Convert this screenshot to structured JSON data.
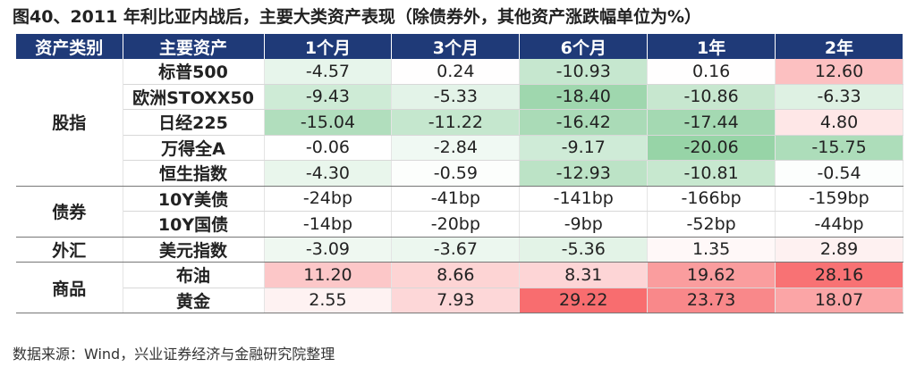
{
  "title": "图40、2011 年利比亚内战后，主要大类资产表现（除债券外，其他资产涨跌幅单位为%）",
  "table": {
    "columns": [
      "资产类别",
      "主要资产",
      "1个月",
      "3个月",
      "6个月",
      "1年",
      "2年"
    ],
    "groups": [
      {
        "label": "股指",
        "rows": [
          {
            "asset": "标普500",
            "values": [
              "-4.57",
              "0.24",
              "-10.93",
              "0.16",
              "12.60"
            ]
          },
          {
            "asset": "欧洲STOXX50",
            "values": [
              "-9.43",
              "-5.33",
              "-18.40",
              "-10.86",
              "-6.33"
            ]
          },
          {
            "asset": "日经225",
            "values": [
              "-15.04",
              "-11.22",
              "-16.42",
              "-17.44",
              "4.80"
            ]
          },
          {
            "asset": "万得全A",
            "values": [
              "-0.06",
              "-2.84",
              "-9.17",
              "-20.06",
              "-15.75"
            ]
          },
          {
            "asset": "恒生指数",
            "values": [
              "-4.30",
              "-0.59",
              "-12.93",
              "-10.81",
              "-0.54"
            ]
          }
        ]
      },
      {
        "label": "债券",
        "rows": [
          {
            "asset": "10Y美债",
            "values": [
              "-24bp",
              "-41bp",
              "-141bp",
              "-166bp",
              "-159bp"
            ]
          },
          {
            "asset": "10Y国债",
            "values": [
              "-14bp",
              "-20bp",
              "-9bp",
              "-52bp",
              "-44bp"
            ]
          }
        ]
      },
      {
        "label": "外汇",
        "rows": [
          {
            "asset": "美元指数",
            "values": [
              "-3.09",
              "-3.67",
              "-5.36",
              "1.35",
              "2.89"
            ]
          }
        ]
      },
      {
        "label": "商品",
        "rows": [
          {
            "asset": "布油",
            "values": [
              "11.20",
              "8.66",
              "8.31",
              "19.62",
              "28.16"
            ]
          },
          {
            "asset": "黄金",
            "values": [
              "2.55",
              "7.93",
              "29.22",
              "23.73",
              "18.07"
            ]
          }
        ]
      }
    ]
  },
  "source": "数据来源：Wind，兴业证券经济与金融研究院整理"
}
